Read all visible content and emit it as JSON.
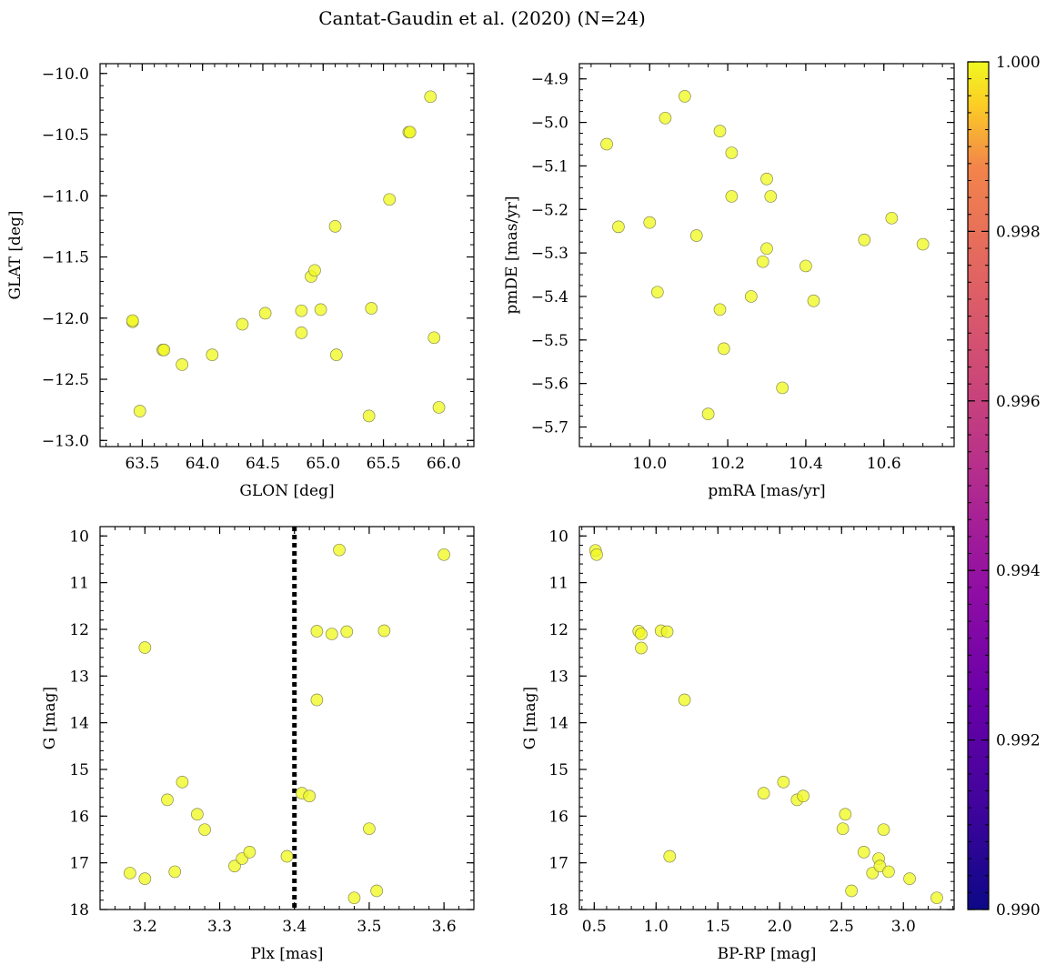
{
  "title": "Cantat-Gaudin et al. (2020) (N=24)",
  "colorbar": {
    "min": 0.99,
    "max": 1.0,
    "ticks": [
      0.99,
      0.992,
      0.994,
      0.996,
      0.998,
      1.0
    ],
    "tick_labels": [
      "0.990",
      "0.992",
      "0.994",
      "0.996",
      "0.998",
      "1.000"
    ],
    "colormap": "plasma"
  },
  "marker_color": "#f0f921",
  "chart_data": [
    {
      "type": "scatter",
      "xlabel": "GLON [deg]",
      "ylabel": "GLAT [deg]",
      "xlim": [
        63.15,
        66.25
      ],
      "ylim": [
        -13.05,
        -9.92
      ],
      "xticks": [
        63.5,
        64.0,
        64.5,
        65.0,
        65.5,
        66.0
      ],
      "xtick_labels": [
        "63.5",
        "64.0",
        "64.5",
        "65.0",
        "65.5",
        "66.0"
      ],
      "yticks": [
        -10.0,
        -10.5,
        -11.0,
        -11.5,
        -12.0,
        -12.5,
        -13.0
      ],
      "ytick_labels": [
        "−10.0",
        "−10.5",
        "−11.0",
        "−11.5",
        "−12.0",
        "−12.5",
        "−13.0"
      ],
      "x_minor": 0.1,
      "y_minor": 0.1,
      "invert_y": false,
      "vline": null,
      "points": [
        [
          63.42,
          -12.03
        ],
        [
          63.42,
          -12.02
        ],
        [
          63.48,
          -12.76
        ],
        [
          63.67,
          -12.26
        ],
        [
          63.68,
          -12.26
        ],
        [
          63.83,
          -12.38
        ],
        [
          64.08,
          -12.3
        ],
        [
          64.33,
          -12.05
        ],
        [
          64.52,
          -11.96
        ],
        [
          64.82,
          -11.94
        ],
        [
          64.82,
          -12.12
        ],
        [
          64.9,
          -11.66
        ],
        [
          64.93,
          -11.61
        ],
        [
          64.98,
          -11.93
        ],
        [
          65.1,
          -11.25
        ],
        [
          65.11,
          -12.3
        ],
        [
          65.38,
          -12.8
        ],
        [
          65.4,
          -11.92
        ],
        [
          65.55,
          -11.03
        ],
        [
          65.71,
          -10.48
        ],
        [
          65.72,
          -10.48
        ],
        [
          65.89,
          -10.19
        ],
        [
          65.92,
          -12.16
        ],
        [
          65.96,
          -12.73
        ]
      ]
    },
    {
      "type": "scatter",
      "xlabel": "pmRA [mas/yr]",
      "ylabel": "pmDE [mas/yr]",
      "xlim": [
        9.82,
        10.78
      ],
      "ylim": [
        -5.745,
        -4.865
      ],
      "xticks": [
        10.0,
        10.2,
        10.4,
        10.6
      ],
      "xtick_labels": [
        "10.0",
        "10.2",
        "10.4",
        "10.6"
      ],
      "yticks": [
        -4.9,
        -5.0,
        -5.1,
        -5.2,
        -5.3,
        -5.4,
        -5.5,
        -5.6,
        -5.7
      ],
      "ytick_labels": [
        "−4.9",
        "−5.0",
        "−5.1",
        "−5.2",
        "−5.3",
        "−5.4",
        "−5.5",
        "−5.6",
        "−5.7"
      ],
      "x_minor": 0.05,
      "y_minor": 0.025,
      "invert_y": false,
      "vline": null,
      "points": [
        [
          9.89,
          -5.05
        ],
        [
          9.92,
          -5.24
        ],
        [
          10.0,
          -5.23
        ],
        [
          10.02,
          -5.39
        ],
        [
          10.04,
          -4.99
        ],
        [
          10.09,
          -4.94
        ],
        [
          10.12,
          -5.26
        ],
        [
          10.15,
          -5.67
        ],
        [
          10.18,
          -5.02
        ],
        [
          10.18,
          -5.43
        ],
        [
          10.19,
          -5.52
        ],
        [
          10.21,
          -5.07
        ],
        [
          10.21,
          -5.17
        ],
        [
          10.26,
          -5.4
        ],
        [
          10.29,
          -5.32
        ],
        [
          10.3,
          -5.13
        ],
        [
          10.3,
          -5.29
        ],
        [
          10.31,
          -5.17
        ],
        [
          10.34,
          -5.61
        ],
        [
          10.4,
          -5.33
        ],
        [
          10.42,
          -5.41
        ],
        [
          10.55,
          -5.27
        ],
        [
          10.62,
          -5.22
        ],
        [
          10.7,
          -5.28
        ]
      ]
    },
    {
      "type": "scatter",
      "xlabel": "Plx [mas]",
      "ylabel": "G [mag]",
      "xlim": [
        3.14,
        3.64
      ],
      "ylim": [
        18.0,
        9.8
      ],
      "xticks": [
        3.2,
        3.3,
        3.4,
        3.5,
        3.6
      ],
      "xtick_labels": [
        "3.2",
        "3.3",
        "3.4",
        "3.5",
        "3.6"
      ],
      "yticks": [
        10,
        11,
        12,
        13,
        14,
        15,
        16,
        17,
        18
      ],
      "ytick_labels": [
        "10",
        "11",
        "12",
        "13",
        "14",
        "15",
        "16",
        "17",
        "18"
      ],
      "x_minor": 0.02,
      "y_minor": 0.2,
      "invert_y": true,
      "vline": 3.4,
      "points": [
        [
          3.18,
          17.22
        ],
        [
          3.2,
          12.39
        ],
        [
          3.2,
          17.34
        ],
        [
          3.23,
          15.65
        ],
        [
          3.24,
          17.19
        ],
        [
          3.25,
          15.27
        ],
        [
          3.27,
          15.96
        ],
        [
          3.28,
          16.29
        ],
        [
          3.32,
          17.07
        ],
        [
          3.33,
          16.91
        ],
        [
          3.34,
          16.77
        ],
        [
          3.39,
          16.86
        ],
        [
          3.41,
          15.51
        ],
        [
          3.42,
          15.57
        ],
        [
          3.43,
          13.51
        ],
        [
          3.43,
          12.04
        ],
        [
          3.45,
          12.1
        ],
        [
          3.46,
          10.3
        ],
        [
          3.47,
          12.05
        ],
        [
          3.48,
          17.75
        ],
        [
          3.5,
          16.27
        ],
        [
          3.51,
          17.6
        ],
        [
          3.52,
          12.03
        ],
        [
          3.6,
          10.4
        ]
      ]
    },
    {
      "type": "scatter",
      "xlabel": "BP-RP [mag]",
      "ylabel": "G [mag]",
      "xlim": [
        0.38,
        3.41
      ],
      "ylim": [
        18.0,
        9.8
      ],
      "xticks": [
        0.5,
        1.0,
        1.5,
        2.0,
        2.5,
        3.0
      ],
      "xtick_labels": [
        "0.5",
        "1.0",
        "1.5",
        "2.0",
        "2.5",
        "3.0"
      ],
      "yticks": [
        10,
        11,
        12,
        13,
        14,
        15,
        16,
        17,
        18
      ],
      "ytick_labels": [
        "10",
        "11",
        "12",
        "13",
        "14",
        "15",
        "16",
        "17",
        "18"
      ],
      "x_minor": 0.1,
      "y_minor": 0.2,
      "invert_y": true,
      "vline": null,
      "points": [
        [
          0.51,
          10.31
        ],
        [
          0.52,
          10.4
        ],
        [
          0.86,
          12.04
        ],
        [
          0.88,
          12.1
        ],
        [
          0.88,
          12.4
        ],
        [
          1.04,
          12.03
        ],
        [
          1.09,
          12.05
        ],
        [
          1.11,
          16.86
        ],
        [
          1.23,
          13.51
        ],
        [
          1.87,
          15.51
        ],
        [
          2.03,
          15.27
        ],
        [
          2.14,
          15.65
        ],
        [
          2.19,
          15.57
        ],
        [
          2.51,
          16.27
        ],
        [
          2.53,
          15.96
        ],
        [
          2.58,
          17.6
        ],
        [
          2.68,
          16.77
        ],
        [
          2.75,
          17.22
        ],
        [
          2.8,
          16.91
        ],
        [
          2.81,
          17.07
        ],
        [
          2.84,
          16.29
        ],
        [
          2.88,
          17.19
        ],
        [
          3.05,
          17.34
        ],
        [
          3.27,
          17.75
        ]
      ]
    }
  ]
}
